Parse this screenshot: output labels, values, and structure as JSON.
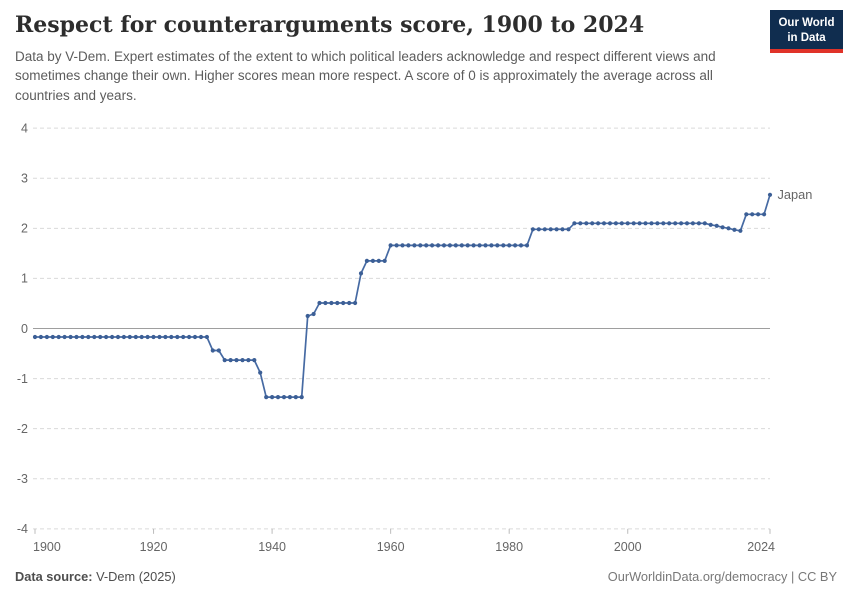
{
  "header": {
    "title": "Respect for counterarguments score, 1900 to 2024",
    "subtitle": "Data by V-Dem. Expert estimates of the extent to which political leaders acknowledge and respect different views and sometimes change their own. Higher scores mean more respect. A score of 0 is approximately the average across all countries and years.",
    "logo": {
      "line1": "Our World",
      "line2": "in Data",
      "bg_color": "#102d4f",
      "accent_color": "#e03329"
    }
  },
  "footer": {
    "source_label": "Data source:",
    "source_value": " V-Dem (2025)",
    "credit": "OurWorldinData.org/democracy | CC BY"
  },
  "chart_data": {
    "type": "line",
    "title": "Respect for counterarguments score, 1900 to 2024",
    "xlabel": "",
    "ylabel": "",
    "xlim": [
      1900,
      2024
    ],
    "ylim": [
      -4,
      4
    ],
    "yticks": [
      4,
      3,
      2,
      1,
      0,
      -1,
      -2,
      -3,
      -4
    ],
    "xticks": [
      1900,
      1920,
      1940,
      1960,
      1980,
      2000,
      2024
    ],
    "grid": "dashed horizontal, solid zero line",
    "legend_position": "end-of-line label",
    "colors": {
      "line": "#466aa3",
      "point": "#3c5f96",
      "entity_label": "#3d639e",
      "gridline": "#dadada",
      "zero_line": "#9e9e9e",
      "tick_text": "#666666"
    },
    "series": [
      {
        "name": "Japan",
        "color": "#466aa3",
        "points": [
          [
            1900,
            -0.17
          ],
          [
            1901,
            -0.17
          ],
          [
            1902,
            -0.17
          ],
          [
            1903,
            -0.17
          ],
          [
            1904,
            -0.17
          ],
          [
            1905,
            -0.17
          ],
          [
            1906,
            -0.17
          ],
          [
            1907,
            -0.17
          ],
          [
            1908,
            -0.17
          ],
          [
            1909,
            -0.17
          ],
          [
            1910,
            -0.17
          ],
          [
            1911,
            -0.17
          ],
          [
            1912,
            -0.17
          ],
          [
            1913,
            -0.17
          ],
          [
            1914,
            -0.17
          ],
          [
            1915,
            -0.17
          ],
          [
            1916,
            -0.17
          ],
          [
            1917,
            -0.17
          ],
          [
            1918,
            -0.17
          ],
          [
            1919,
            -0.17
          ],
          [
            1920,
            -0.17
          ],
          [
            1921,
            -0.17
          ],
          [
            1922,
            -0.17
          ],
          [
            1923,
            -0.17
          ],
          [
            1924,
            -0.17
          ],
          [
            1925,
            -0.17
          ],
          [
            1926,
            -0.17
          ],
          [
            1927,
            -0.17
          ],
          [
            1928,
            -0.17
          ],
          [
            1929,
            -0.17
          ],
          [
            1930,
            -0.44
          ],
          [
            1931,
            -0.44
          ],
          [
            1932,
            -0.63
          ],
          [
            1933,
            -0.63
          ],
          [
            1934,
            -0.63
          ],
          [
            1935,
            -0.63
          ],
          [
            1936,
            -0.63
          ],
          [
            1937,
            -0.63
          ],
          [
            1938,
            -0.88
          ],
          [
            1939,
            -1.37
          ],
          [
            1940,
            -1.37
          ],
          [
            1941,
            -1.37
          ],
          [
            1942,
            -1.37
          ],
          [
            1943,
            -1.37
          ],
          [
            1944,
            -1.37
          ],
          [
            1945,
            -1.37
          ],
          [
            1946,
            0.25
          ],
          [
            1947,
            0.29
          ],
          [
            1948,
            0.51
          ],
          [
            1949,
            0.51
          ],
          [
            1950,
            0.51
          ],
          [
            1951,
            0.51
          ],
          [
            1952,
            0.51
          ],
          [
            1953,
            0.51
          ],
          [
            1954,
            0.51
          ],
          [
            1955,
            1.1
          ],
          [
            1956,
            1.35
          ],
          [
            1957,
            1.35
          ],
          [
            1958,
            1.35
          ],
          [
            1959,
            1.35
          ],
          [
            1960,
            1.66
          ],
          [
            1961,
            1.66
          ],
          [
            1962,
            1.66
          ],
          [
            1963,
            1.66
          ],
          [
            1964,
            1.66
          ],
          [
            1965,
            1.66
          ],
          [
            1966,
            1.66
          ],
          [
            1967,
            1.66
          ],
          [
            1968,
            1.66
          ],
          [
            1969,
            1.66
          ],
          [
            1970,
            1.66
          ],
          [
            1971,
            1.66
          ],
          [
            1972,
            1.66
          ],
          [
            1973,
            1.66
          ],
          [
            1974,
            1.66
          ],
          [
            1975,
            1.66
          ],
          [
            1976,
            1.66
          ],
          [
            1977,
            1.66
          ],
          [
            1978,
            1.66
          ],
          [
            1979,
            1.66
          ],
          [
            1980,
            1.66
          ],
          [
            1981,
            1.66
          ],
          [
            1982,
            1.66
          ],
          [
            1983,
            1.66
          ],
          [
            1984,
            1.98
          ],
          [
            1985,
            1.98
          ],
          [
            1986,
            1.98
          ],
          [
            1987,
            1.98
          ],
          [
            1988,
            1.98
          ],
          [
            1989,
            1.98
          ],
          [
            1990,
            1.98
          ],
          [
            1991,
            2.1
          ],
          [
            1992,
            2.1
          ],
          [
            1993,
            2.1
          ],
          [
            1994,
            2.1
          ],
          [
            1995,
            2.1
          ],
          [
            1996,
            2.1
          ],
          [
            1997,
            2.1
          ],
          [
            1998,
            2.1
          ],
          [
            1999,
            2.1
          ],
          [
            2000,
            2.1
          ],
          [
            2001,
            2.1
          ],
          [
            2002,
            2.1
          ],
          [
            2003,
            2.1
          ],
          [
            2004,
            2.1
          ],
          [
            2005,
            2.1
          ],
          [
            2006,
            2.1
          ],
          [
            2007,
            2.1
          ],
          [
            2008,
            2.1
          ],
          [
            2009,
            2.1
          ],
          [
            2010,
            2.1
          ],
          [
            2011,
            2.1
          ],
          [
            2012,
            2.1
          ],
          [
            2013,
            2.1
          ],
          [
            2014,
            2.07
          ],
          [
            2015,
            2.05
          ],
          [
            2016,
            2.02
          ],
          [
            2017,
            2.0
          ],
          [
            2018,
            1.97
          ],
          [
            2019,
            1.95
          ],
          [
            2020,
            2.28
          ],
          [
            2021,
            2.28
          ],
          [
            2022,
            2.28
          ],
          [
            2023,
            2.28
          ],
          [
            2024,
            2.67
          ]
        ]
      }
    ]
  }
}
